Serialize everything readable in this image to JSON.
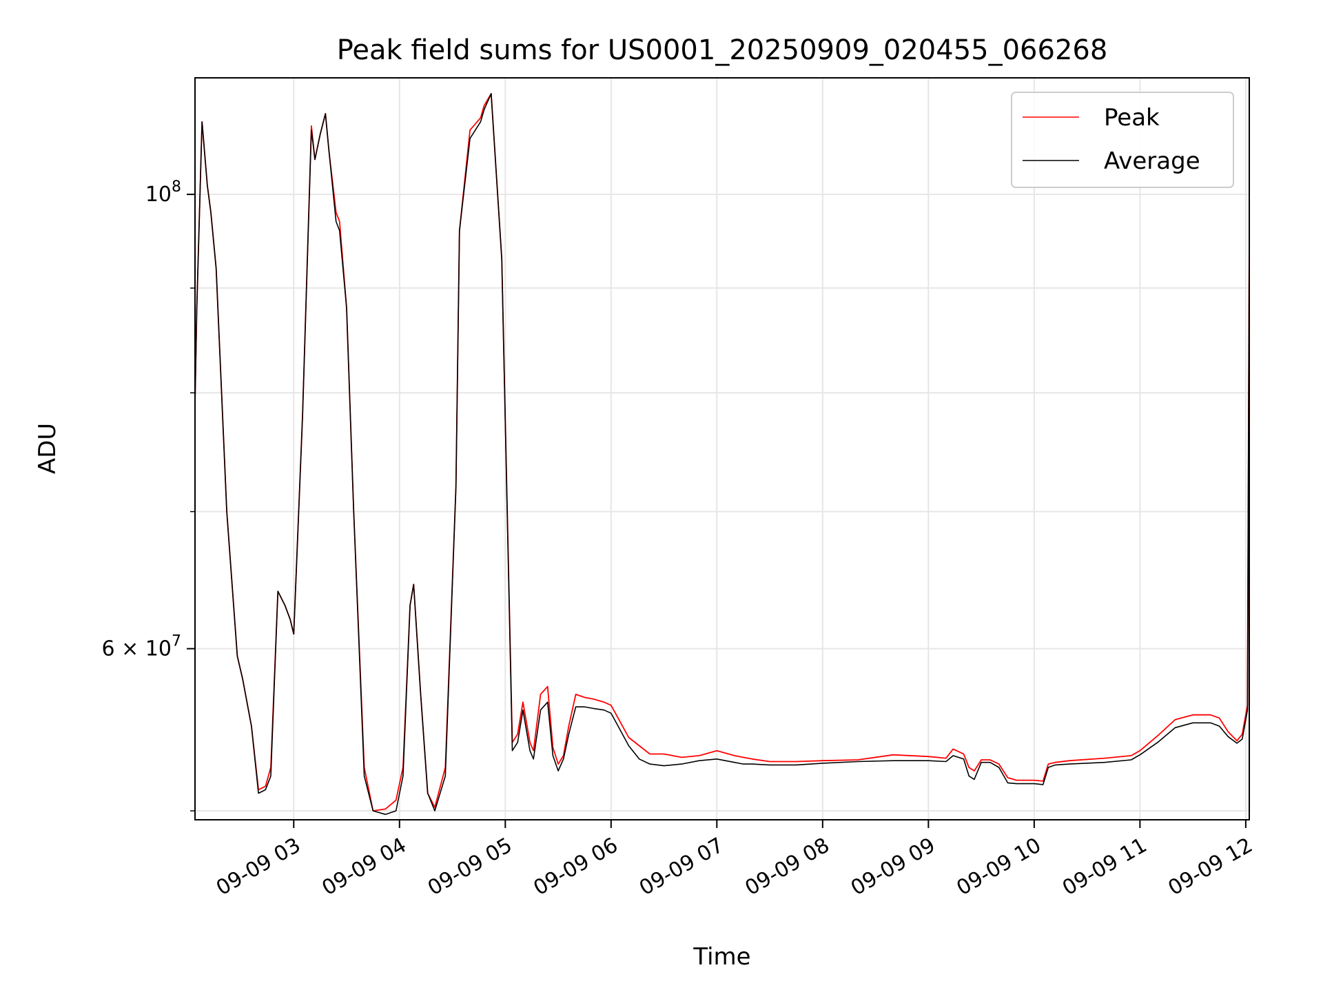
{
  "chart_data": {
    "type": "line",
    "title": "Peak field sums for US0001_20250909_020455_066268",
    "xlabel": "Time",
    "ylabel": "ADU",
    "y_scale": "log",
    "grid": true,
    "legend_placement": "top-right",
    "colors": {
      "peak": "#ff0000",
      "average": "#000000",
      "grid": "#e6e6e6"
    },
    "xlim": [
      "09-09 02:04",
      "09-09 12:02"
    ],
    "ylim": [
      49500000,
      114000000
    ],
    "x_tick_labels": [
      "09-09 03",
      "09-09 04",
      "09-09 05",
      "09-09 06",
      "09-09 07",
      "09-09 08",
      "09-09 09",
      "09-09 10",
      "09-09 11",
      "09-09 12"
    ],
    "y_tick_labels": [
      {
        "value": 100000000,
        "mantissa": "",
        "base": "10",
        "exp": "8"
      },
      {
        "value": 60000000,
        "mantissa": "6",
        "base": "10",
        "exp": "7"
      }
    ],
    "y_minor_ticks": [
      50000000,
      70000000,
      80000000,
      90000000
    ],
    "x": [
      "09-09 02:04",
      "09-09 02:05",
      "09-09 02:08",
      "09-09 02:11",
      "09-09 02:13",
      "09-09 02:16",
      "09-09 02:22",
      "09-09 02:28",
      "09-09 02:31",
      "09-09 02:36",
      "09-09 02:40",
      "09-09 02:44",
      "09-09 02:47",
      "09-09 02:51",
      "09-09 02:55",
      "09-09 02:58",
      "09-09 03:00",
      "09-09 03:05",
      "09-09 03:10",
      "09-09 03:12",
      "09-09 03:15",
      "09-09 03:18",
      "09-09 03:20",
      "09-09 03:24",
      "09-09 03:26",
      "09-09 03:30",
      "09-09 03:34",
      "09-09 03:40",
      "09-09 03:45",
      "09-09 03:52",
      "09-09 03:58",
      "09-09 04:02",
      "09-09 04:06",
      "09-09 04:08",
      "09-09 04:12",
      "09-09 04:16",
      "09-09 04:20",
      "09-09 04:26",
      "09-09 04:32",
      "09-09 04:34",
      "09-09 04:40",
      "09-09 04:46",
      "09-09 04:48",
      "09-09 04:52",
      "09-09 04:58",
      "09-09 05:04",
      "09-09 05:07",
      "09-09 05:10",
      "09-09 05:14",
      "09-09 05:16",
      "09-09 05:20",
      "09-09 05:24",
      "09-09 05:27",
      "09-09 05:30",
      "09-09 05:33",
      "09-09 05:36",
      "09-09 05:40",
      "09-09 05:45",
      "09-09 05:50",
      "09-09 05:56",
      "09-09 06:00",
      "09-09 06:04",
      "09-09 06:10",
      "09-09 06:16",
      "09-09 06:22",
      "09-09 06:30",
      "09-09 06:40",
      "09-09 06:50",
      "09-09 07:00",
      "09-09 07:10",
      "09-09 07:15",
      "09-09 07:20",
      "09-09 07:30",
      "09-09 07:45",
      "09-09 08:00",
      "09-09 08:20",
      "09-09 08:40",
      "09-09 09:00",
      "09-09 09:10",
      "09-09 09:14",
      "09-09 09:20",
      "09-09 09:23",
      "09-09 09:26",
      "09-09 09:30",
      "09-09 09:35",
      "09-09 09:40",
      "09-09 09:45",
      "09-09 09:50",
      "09-09 10:00",
      "09-09 10:05",
      "09-09 10:08",
      "09-09 10:12",
      "09-09 10:20",
      "09-09 10:40",
      "09-09 10:55",
      "09-09 11:00",
      "09-09 11:10",
      "09-09 11:20",
      "09-09 11:30",
      "09-09 11:40",
      "09-09 11:45",
      "09-09 11:50",
      "09-09 11:55",
      "09-09 11:58",
      "09-09 12:01",
      "09-09 12:02"
    ],
    "series": [
      {
        "name": "Peak",
        "values": [
          79000000,
          88000000,
          108500000,
          101000000,
          98000000,
          92000000,
          70000000,
          59500000,
          58000000,
          55000000,
          51200000,
          51400000,
          52500000,
          64000000,
          63000000,
          62000000,
          61000000,
          78000000,
          108000000,
          104000000,
          107000000,
          109500000,
          105000000,
          98000000,
          97000000,
          88000000,
          70000000,
          52500000,
          50000000,
          50100000,
          50600000,
          52500000,
          63000000,
          64500000,
          57000000,
          51000000,
          50200000,
          52500000,
          72000000,
          96000000,
          107500000,
          109000000,
          110500000,
          112000000,
          93000000,
          54000000,
          54500000,
          56500000,
          54000000,
          53500000,
          57000000,
          57500000,
          53700000,
          52700000,
          53200000,
          55000000,
          57000000,
          56800000,
          56700000,
          56500000,
          56300000,
          55500000,
          54300000,
          53800000,
          53300000,
          53300000,
          53100000,
          53200000,
          53500000,
          53200000,
          53100000,
          53000000,
          52850000,
          52850000,
          52900000,
          52950000,
          53250000,
          53150000,
          53050000,
          53600000,
          53300000,
          52500000,
          52300000,
          52950000,
          52950000,
          52700000,
          51900000,
          51750000,
          51750000,
          51700000,
          52700000,
          52800000,
          52900000,
          53050000,
          53200000,
          53500000,
          54400000,
          55400000,
          55700000,
          55700000,
          55500000,
          54650000,
          54100000,
          54500000,
          56300000,
          96000000
        ]
      },
      {
        "name": "Average",
        "values": [
          79000000,
          88000000,
          108500000,
          101000000,
          98000000,
          92000000,
          70000000,
          59500000,
          58000000,
          55000000,
          51000000,
          51200000,
          52000000,
          64000000,
          63000000,
          62000000,
          61000000,
          78000000,
          107500000,
          104000000,
          107000000,
          109500000,
          105000000,
          97000000,
          96000000,
          88000000,
          70000000,
          52000000,
          50000000,
          49800000,
          50000000,
          52000000,
          63000000,
          64500000,
          57000000,
          51000000,
          50000000,
          52000000,
          72000000,
          96000000,
          106500000,
          108500000,
          110000000,
          112000000,
          93000000,
          53500000,
          54000000,
          56000000,
          53500000,
          53000000,
          56000000,
          56500000,
          53200000,
          52300000,
          53000000,
          54500000,
          56200000,
          56200000,
          56100000,
          56000000,
          55800000,
          55000000,
          53800000,
          53000000,
          52700000,
          52600000,
          52700000,
          52900000,
          53000000,
          52800000,
          52700000,
          52700000,
          52650000,
          52650000,
          52750000,
          52850000,
          52900000,
          52900000,
          52850000,
          53200000,
          53000000,
          52000000,
          51800000,
          52800000,
          52800000,
          52500000,
          51600000,
          51550000,
          51550000,
          51500000,
          52500000,
          52650000,
          52700000,
          52800000,
          52950000,
          53250000,
          54000000,
          54900000,
          55200000,
          55200000,
          55000000,
          54350000,
          53950000,
          54200000,
          56000000,
          96000000
        ]
      }
    ]
  }
}
